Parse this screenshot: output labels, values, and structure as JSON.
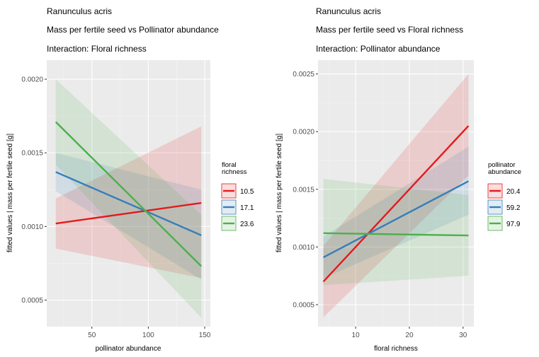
{
  "chart_data": [
    {
      "type": "line",
      "title": "Ranunculus acris",
      "subtitle": "Mass per fertile seed vs Pollinator abundance",
      "caption": "Interaction: Floral richness",
      "xlabel": "pollinator abundance",
      "ylabel": "fitted values | mass per fertile seed [g]",
      "xlim": [
        10,
        155
      ],
      "ylim": [
        0.00032,
        0.00213
      ],
      "xticks": [
        50,
        100,
        150
      ],
      "yticks": [
        0.0005,
        0.001,
        0.0015,
        0.002
      ],
      "ytick_labels": [
        "0.0005",
        "0.0010",
        "0.0015",
        "0.0020"
      ],
      "legend": {
        "title": "floral\nrichness",
        "placement": "right"
      },
      "series": [
        {
          "name": "10.5",
          "color": "#e41a1c",
          "x": [
            18,
            147
          ],
          "y": [
            0.00102,
            0.00116
          ],
          "lower": [
            0.00085,
            0.00065
          ],
          "upper": [
            0.00119,
            0.00168
          ]
        },
        {
          "name": "17.1",
          "color": "#377eb8",
          "x": [
            18,
            147
          ],
          "y": [
            0.00137,
            0.00094
          ],
          "lower": [
            0.00124,
            0.00064
          ],
          "upper": [
            0.0015,
            0.00125
          ]
        },
        {
          "name": "23.6",
          "color": "#4daf4a",
          "x": [
            18,
            147
          ],
          "y": [
            0.00171,
            0.00073
          ],
          "lower": [
            0.00142,
            0.00038
          ],
          "upper": [
            0.002,
            0.00108
          ]
        }
      ]
    },
    {
      "type": "line",
      "title": "Ranunculus acris",
      "subtitle": "Mass per fertile seed vs Floral richness",
      "caption": "Interaction: Pollinator abundance",
      "xlabel": "floral richness",
      "ylabel": "fitted values | mass per fertile seed [g]",
      "xlim": [
        3,
        32
      ],
      "ylim": [
        0.00031,
        0.00262
      ],
      "xticks": [
        10,
        20,
        30
      ],
      "yticks": [
        0.0005,
        0.001,
        0.0015,
        0.002,
        0.0025
      ],
      "ytick_labels": [
        "0.0005",
        "0.0010",
        "0.0015",
        "0.0020",
        "0.0025"
      ],
      "legend": {
        "title": "pollinator\nabundance",
        "placement": "right"
      },
      "series": [
        {
          "name": "20.4",
          "color": "#e41a1c",
          "x": [
            4,
            31
          ],
          "y": [
            0.0007,
            0.00205
          ],
          "lower": [
            0.00039,
            0.00162
          ],
          "upper": [
            0.00101,
            0.0025
          ]
        },
        {
          "name": "59.2",
          "color": "#377eb8",
          "x": [
            4,
            31
          ],
          "y": [
            0.00091,
            0.00157
          ],
          "lower": [
            0.00073,
            0.00128
          ],
          "upper": [
            0.00109,
            0.00187
          ]
        },
        {
          "name": "97.9",
          "color": "#4daf4a",
          "x": [
            4,
            31
          ],
          "y": [
            0.00112,
            0.0011
          ],
          "lower": [
            0.00067,
            0.00075
          ],
          "upper": [
            0.00159,
            0.00145
          ]
        }
      ]
    }
  ]
}
